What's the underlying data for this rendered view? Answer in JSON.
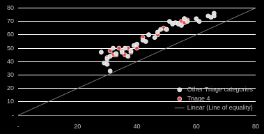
{
  "chart_data": {
    "type": "scatter",
    "xlim": [
      0,
      80
    ],
    "xticks": [
      {
        "value": 0,
        "label": "-"
      },
      20,
      40,
      60,
      80
    ],
    "ylim": [
      0,
      80
    ],
    "yticks": [
      {
        "value": 0,
        "label": "-"
      },
      10,
      20,
      30,
      40,
      50,
      60,
      70,
      80
    ],
    "grid": "y",
    "legend": "lower right",
    "series": [
      {
        "name": "Other Triage categories",
        "color": "#d9d9d9",
        "marker": "circle",
        "x": [
          28,
          29,
          30,
          30,
          31,
          31,
          32,
          33,
          35,
          36,
          37,
          38,
          39,
          40,
          42,
          43,
          44,
          46,
          47,
          48,
          50,
          51,
          52,
          53,
          54,
          55,
          56,
          57,
          60,
          61,
          64,
          65,
          66,
          66
        ],
        "values": [
          47,
          39,
          38,
          42,
          33,
          44,
          50,
          46,
          47,
          50,
          44,
          48,
          52,
          53,
          56,
          55,
          60,
          58,
          62,
          64,
          64,
          70,
          68,
          69,
          68,
          67,
          72,
          70,
          72,
          70,
          74,
          73,
          76,
          74
        ]
      },
      {
        "name": "Triage 4",
        "color": "#e8474a",
        "marker": "circle",
        "x": [
          30,
          31,
          32,
          33,
          34,
          35,
          36,
          37,
          38,
          40,
          42,
          44,
          47,
          49,
          50,
          55,
          55,
          56,
          56,
          57
        ],
        "values": [
          43,
          48,
          45,
          45,
          50,
          48,
          45,
          50,
          47,
          50,
          58,
          60,
          60,
          65,
          64,
          70,
          68,
          72,
          69,
          71
        ]
      },
      {
        "name": "Linear (Line of equality)",
        "color": "#808080",
        "type": "line",
        "line_style": "solid",
        "x": [
          0,
          80
        ],
        "values": [
          0,
          80
        ]
      }
    ]
  }
}
